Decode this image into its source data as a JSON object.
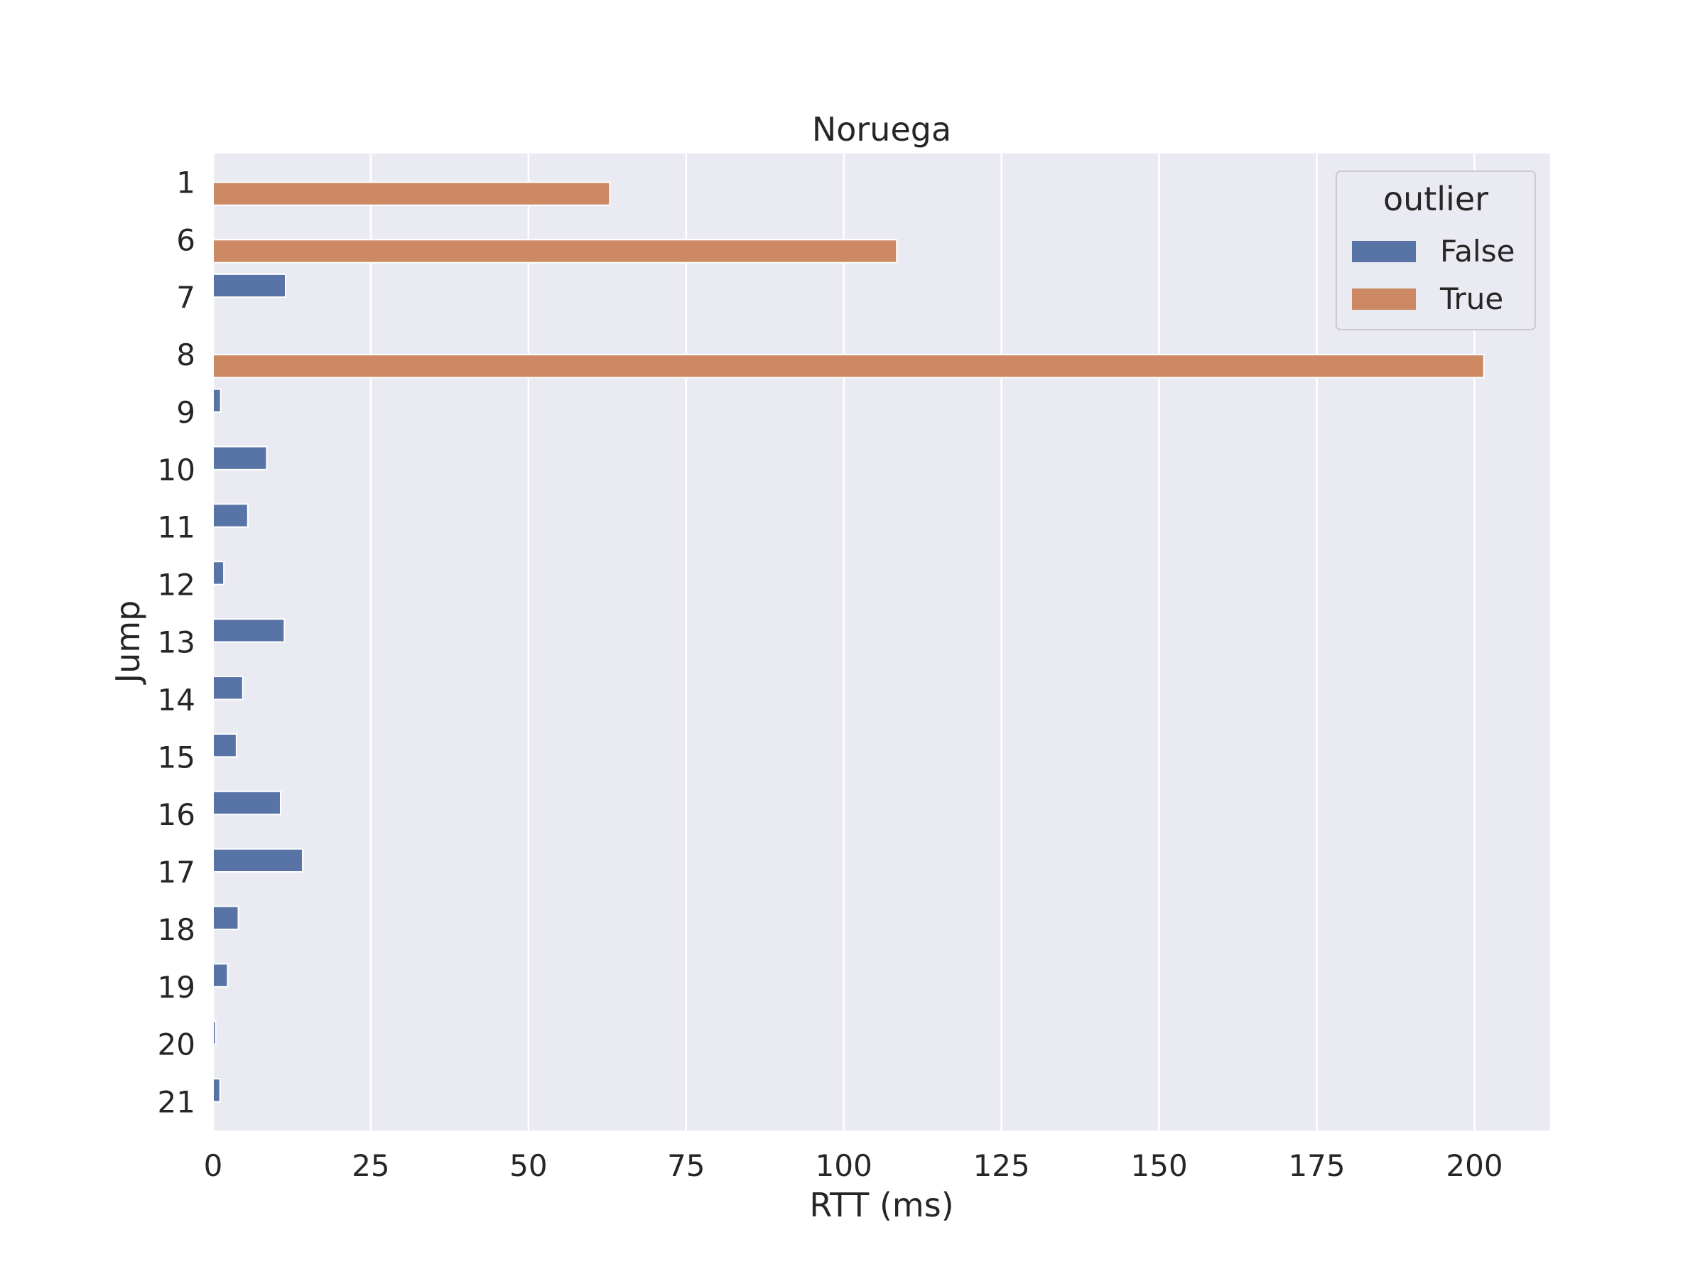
{
  "chart_data": {
    "type": "bar",
    "orientation": "horizontal",
    "title": "Noruega",
    "xlabel": "RTT (ms)",
    "ylabel": "Jump",
    "xlim": [
      0,
      212
    ],
    "xticks": [
      0,
      25,
      50,
      75,
      100,
      125,
      150,
      175,
      200
    ],
    "categories": [
      "1",
      "6",
      "7",
      "8",
      "9",
      "10",
      "11",
      "12",
      "13",
      "14",
      "15",
      "16",
      "17",
      "18",
      "19",
      "20",
      "21"
    ],
    "series": [
      {
        "name": "False",
        "color": "#5874a7",
        "values": [
          null,
          null,
          11.5,
          null,
          1.2,
          8.5,
          5.5,
          1.7,
          11.3,
          4.7,
          3.7,
          10.7,
          14.2,
          4.0,
          2.3,
          0.4,
          1.1
        ]
      },
      {
        "name": "True",
        "color": "#cc8963",
        "values": [
          62.9,
          108.4,
          null,
          201.5,
          null,
          null,
          null,
          null,
          null,
          null,
          null,
          null,
          null,
          null,
          null,
          null,
          null
        ]
      }
    ],
    "legend": {
      "title": "outlier",
      "position": "top-right"
    },
    "grid": true,
    "style": {
      "background": "#eaeaf2",
      "grid_color": "#ffffff"
    }
  }
}
